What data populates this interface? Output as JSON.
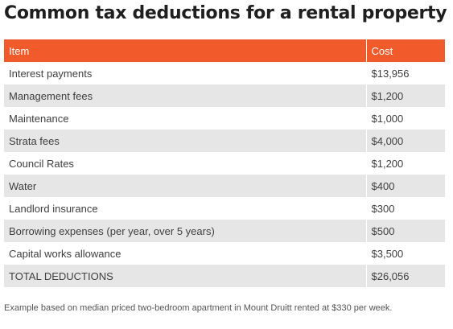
{
  "title": "Common tax deductions for a rental property",
  "table": {
    "headers": [
      "Item",
      "Cost"
    ],
    "rows": [
      {
        "item": "Interest payments",
        "cost": "$13,956"
      },
      {
        "item": "Management fees",
        "cost": "$1,200"
      },
      {
        "item": "Maintenance",
        "cost": "$1,000"
      },
      {
        "item": "Strata fees",
        "cost": "$4,000"
      },
      {
        "item": "Council Rates",
        "cost": "$1,200"
      },
      {
        "item": "Water",
        "cost": "$400"
      },
      {
        "item": "Landlord insurance",
        "cost": "$300"
      },
      {
        "item": "Borrowing expenses (per year, over 5 years)",
        "cost": "$500"
      },
      {
        "item": "Capital works allowance",
        "cost": "$3,500"
      },
      {
        "item": "TOTAL DEDUCTIONS",
        "cost": "$26,056"
      }
    ]
  },
  "footnote": "Example based on median priced two-bedroom apartment in Mount Druitt rented at $330 per week.",
  "colors": {
    "header_background": "#f15a2b",
    "striped_row": "#e6e6e6"
  }
}
